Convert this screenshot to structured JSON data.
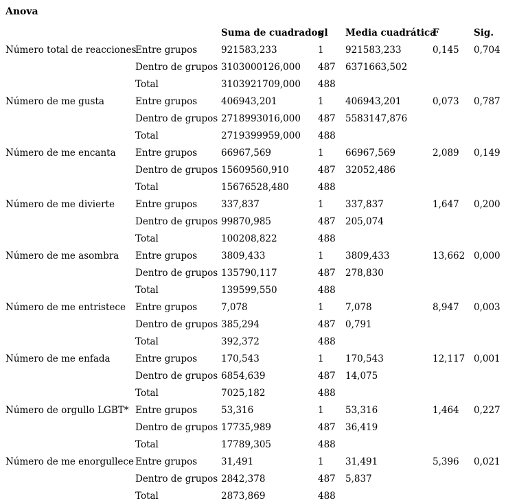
{
  "title": "Anova",
  "colors": {
    "text": "#000000",
    "background": "#ffffff"
  },
  "table": {
    "headers": {
      "sum": "Suma de cuadrados",
      "gl": "gl",
      "mean": "Media cuadrática",
      "f": "F",
      "sig": "Sig."
    },
    "groups": [
      {
        "label": "Número total de reacciones",
        "rows": [
          {
            "type": "Entre grupos",
            "sum": "921583,233",
            "gl": "1",
            "mean": "921583,233",
            "f": "0,145",
            "sig": "0,704"
          },
          {
            "type": "Dentro de grupos",
            "sum": "3103000126,000",
            "gl": "487",
            "mean": "6371663,502",
            "f": "",
            "sig": ""
          },
          {
            "type": "Total",
            "sum": "3103921709,000",
            "gl": "488",
            "mean": "",
            "f": "",
            "sig": ""
          }
        ]
      },
      {
        "label": "Número de me gusta",
        "rows": [
          {
            "type": "Entre grupos",
            "sum": "406943,201",
            "gl": "1",
            "mean": "406943,201",
            "f": "0,073",
            "sig": "0,787"
          },
          {
            "type": "Dentro de grupos",
            "sum": "2718993016,000",
            "gl": "487",
            "mean": "5583147,876",
            "f": "",
            "sig": ""
          },
          {
            "type": "Total",
            "sum": "2719399959,000",
            "gl": "488",
            "mean": "",
            "f": "",
            "sig": ""
          }
        ]
      },
      {
        "label": "Número de me encanta",
        "rows": [
          {
            "type": "Entre grupos",
            "sum": "66967,569",
            "gl": "1",
            "mean": "66967,569",
            "f": "2,089",
            "sig": "0,149"
          },
          {
            "type": "Dentro de grupos",
            "sum": "15609560,910",
            "gl": "487",
            "mean": "32052,486",
            "f": "",
            "sig": ""
          },
          {
            "type": "Total",
            "sum": "15676528,480",
            "gl": "488",
            "mean": "",
            "f": "",
            "sig": ""
          }
        ]
      },
      {
        "label": "Número de me divierte",
        "rows": [
          {
            "type": "Entre grupos",
            "sum": "337,837",
            "gl": "1",
            "mean": "337,837",
            "f": "1,647",
            "sig": "0,200"
          },
          {
            "type": "Dentro de grupos",
            "sum": "99870,985",
            "gl": "487",
            "mean": "205,074",
            "f": "",
            "sig": ""
          },
          {
            "type": "Total",
            "sum": "100208,822",
            "gl": "488",
            "mean": "",
            "f": "",
            "sig": ""
          }
        ]
      },
      {
        "label": "Número de me asombra",
        "rows": [
          {
            "type": "Entre grupos",
            "sum": "3809,433",
            "gl": "1",
            "mean": "3809,433",
            "f": "13,662",
            "sig": "0,000"
          },
          {
            "type": "Dentro de grupos",
            "sum": "135790,117",
            "gl": "487",
            "mean": "278,830",
            "f": "",
            "sig": ""
          },
          {
            "type": "Total",
            "sum": "139599,550",
            "gl": "488",
            "mean": "",
            "f": "",
            "sig": ""
          }
        ]
      },
      {
        "label": "Número de me entristece",
        "rows": [
          {
            "type": "Entre grupos",
            "sum": "7,078",
            "gl": "1",
            "mean": "7,078",
            "f": "8,947",
            "sig": "0,003"
          },
          {
            "type": "Dentro de grupos",
            "sum": "385,294",
            "gl": "487",
            "mean": "0,791",
            "f": "",
            "sig": ""
          },
          {
            "type": "Total",
            "sum": "392,372",
            "gl": "488",
            "mean": "",
            "f": "",
            "sig": ""
          }
        ]
      },
      {
        "label": "Número de me enfada",
        "rows": [
          {
            "type": "Entre grupos",
            "sum": "170,543",
            "gl": "1",
            "mean": "170,543",
            "f": "12,117",
            "sig": "0,001"
          },
          {
            "type": "Dentro de grupos",
            "sum": "6854,639",
            "gl": "487",
            "mean": "14,075",
            "f": "",
            "sig": ""
          },
          {
            "type": "Total",
            "sum": "7025,182",
            "gl": "488",
            "mean": "",
            "f": "",
            "sig": ""
          }
        ]
      },
      {
        "label": "Número de orgullo LGBT*",
        "rows": [
          {
            "type": "Entre grupos",
            "sum": "53,316",
            "gl": "1",
            "mean": "53,316",
            "f": "1,464",
            "sig": "0,227"
          },
          {
            "type": "Dentro de grupos",
            "sum": "17735,989",
            "gl": "487",
            "mean": "36,419",
            "f": "",
            "sig": ""
          },
          {
            "type": "Total",
            "sum": "17789,305",
            "gl": "488",
            "mean": "",
            "f": "",
            "sig": ""
          }
        ]
      },
      {
        "label": "Número de me enorgullece",
        "rows": [
          {
            "type": "Entre grupos",
            "sum": "31,491",
            "gl": "1",
            "mean": "31,491",
            "f": "5,396",
            "sig": "0,021"
          },
          {
            "type": "Dentro de grupos",
            "sum": "2842,378",
            "gl": "487",
            "mean": "5,837",
            "f": "",
            "sig": ""
          },
          {
            "type": "Total",
            "sum": "2873,869",
            "gl": "488",
            "mean": "",
            "f": "",
            "sig": ""
          }
        ]
      }
    ]
  }
}
